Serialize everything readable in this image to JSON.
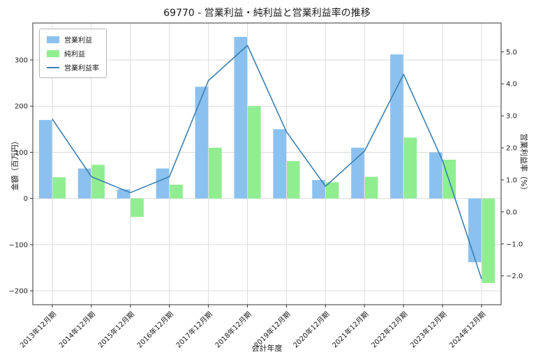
{
  "chart_data": {
    "type": "bar",
    "title": "69770 - 営業利益・純利益と営業利益率の推移",
    "xlabel": "会計年度",
    "ylabel_left": "金額（百万円）",
    "ylabel_right": "営業利益率（%）",
    "categories": [
      "2013年12月期",
      "2014年12月期",
      "2015年12月期",
      "2016年12月期",
      "2017年12月期",
      "2018年12月期",
      "2019年12月期",
      "2020年12月期",
      "2021年12月期",
      "2022年12月期",
      "2023年12月期",
      "2024年12月期"
    ],
    "series": [
      {
        "name": "営業利益",
        "type": "bar",
        "axis": "left",
        "color": "#8bc1ef",
        "values": [
          170,
          65,
          20,
          65,
          242,
          350,
          150,
          40,
          110,
          312,
          100,
          -138
        ]
      },
      {
        "name": "純利益",
        "type": "bar",
        "axis": "left",
        "color": "#90ee90",
        "values": [
          46,
          73,
          -40,
          30,
          110,
          200,
          81,
          35,
          47,
          132,
          84,
          -183
        ]
      },
      {
        "name": "営業利益率",
        "type": "line",
        "axis": "right",
        "color": "#3c7fb1",
        "values": [
          2.9,
          1.1,
          0.6,
          1.1,
          4.1,
          5.2,
          2.5,
          0.8,
          1.9,
          4.3,
          1.6,
          -2.1
        ]
      }
    ],
    "left_axis": {
      "min": -230,
      "max": 380,
      "ticks": [
        -200,
        -100,
        0,
        100,
        200,
        300
      ]
    },
    "right_axis": {
      "min": -2.9,
      "max": 5.9,
      "ticks": [
        -2,
        -1,
        0,
        1,
        2,
        3,
        4,
        5
      ]
    },
    "grid": true,
    "legend_position": "upper left",
    "background": "#ffffff",
    "grid_color": "#dcdcdc",
    "spine_color": "#333333",
    "text_color": "#1a1a1a"
  }
}
